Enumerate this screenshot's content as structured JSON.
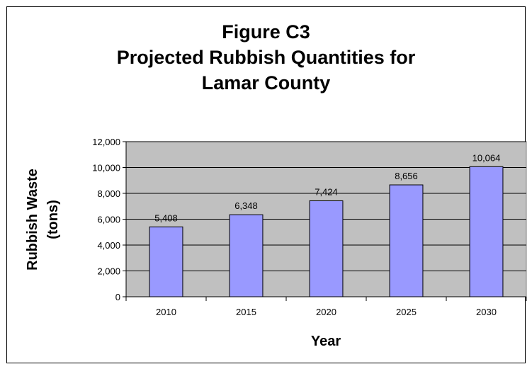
{
  "chart_data": {
    "type": "bar",
    "title_lines": [
      "Figure C3",
      "Projected Rubbish Quantities for",
      "Lamar County"
    ],
    "xlabel": "Year",
    "ylabel_lines": [
      "Rubbish Waste",
      "(tons)"
    ],
    "categories": [
      "2010",
      "2015",
      "2020",
      "2025",
      "2030"
    ],
    "values": [
      5408,
      6348,
      7424,
      8656,
      10064
    ],
    "value_labels": [
      "5,408",
      "6,348",
      "7,424",
      "8,656",
      "10,064"
    ],
    "ylim": [
      0,
      12000
    ],
    "yticks": [
      0,
      2000,
      4000,
      6000,
      8000,
      10000,
      12000
    ],
    "ytick_labels": [
      "0",
      "2,000",
      "4,000",
      "6,000",
      "8,000",
      "10,000",
      "12,000"
    ],
    "grid": true,
    "legend": "none",
    "colors": {
      "bar_fill": "#9999ff",
      "plot_background": "#c0c0c0",
      "gridline": "#000000"
    }
  }
}
